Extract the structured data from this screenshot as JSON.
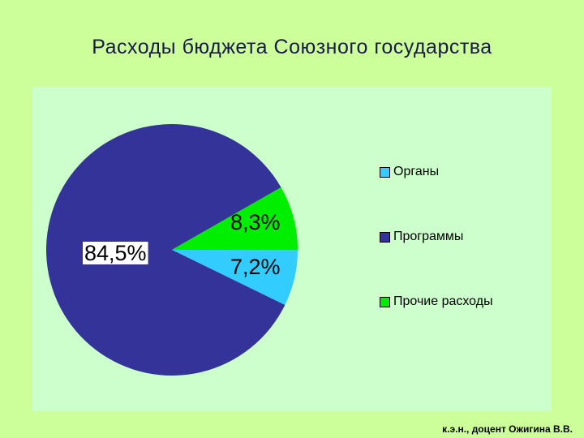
{
  "chart_data": {
    "type": "pie",
    "title": "Расходы бюджета Союзного государства",
    "categories": [
      "Органы",
      "Программы",
      "Прочие расходы"
    ],
    "values": [
      7.2,
      84.5,
      8.3
    ],
    "data_labels": [
      "7,2%",
      "84,5%",
      "8,3%"
    ],
    "colors": [
      "#33ccff",
      "#333399",
      "#00ee00"
    ],
    "legend_position": "right",
    "grid": false
  },
  "footer": "к.э.н., доцент Ожигина В.В."
}
